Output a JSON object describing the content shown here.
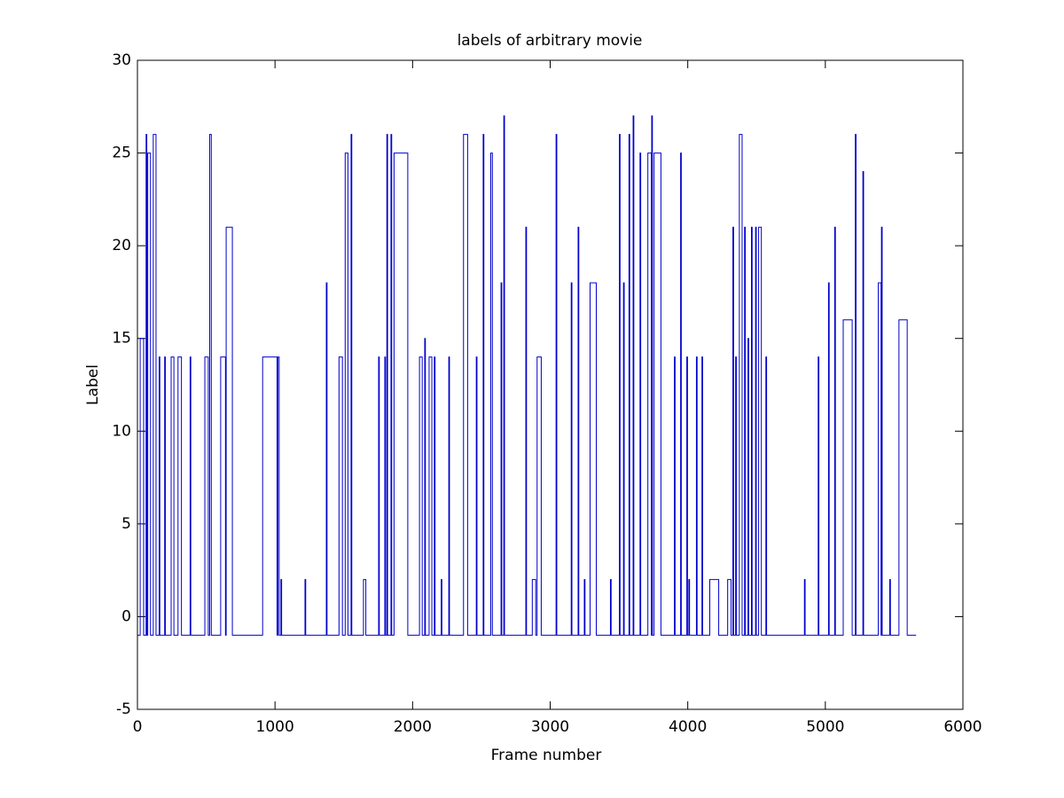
{
  "chart_data": {
    "type": "line",
    "title": "labels of arbitrary movie",
    "x_label": "Frame number",
    "y_label": "Label",
    "color": "#0000cc",
    "grid": false,
    "xlim": [
      0,
      6000
    ],
    "xticks": [
      0,
      1000,
      2000,
      3000,
      4000,
      5000,
      6000
    ],
    "ylim": [
      -5,
      30
    ],
    "yticks": [
      -5,
      0,
      5,
      10,
      15,
      20,
      25,
      30
    ],
    "x": [
      0,
      20,
      20,
      45,
      45,
      63,
      63,
      68,
      68,
      75,
      75,
      95,
      95,
      115,
      115,
      135,
      135,
      158,
      158,
      163,
      163,
      198,
      198,
      203,
      203,
      245,
      245,
      265,
      265,
      295,
      295,
      320,
      320,
      383,
      383,
      388,
      388,
      490,
      490,
      515,
      515,
      525,
      525,
      537,
      537,
      605,
      605,
      640,
      640,
      645,
      645,
      690,
      690,
      910,
      910,
      1015,
      1015,
      1020,
      1020,
      1030,
      1030,
      1043,
      1043,
      1048,
      1048,
      1218,
      1218,
      1223,
      1223,
      1373,
      1373,
      1378,
      1378,
      1465,
      1465,
      1490,
      1490,
      1510,
      1510,
      1530,
      1530,
      1553,
      1553,
      1558,
      1558,
      1643,
      1643,
      1660,
      1660,
      1753,
      1753,
      1758,
      1758,
      1798,
      1798,
      1803,
      1803,
      1813,
      1813,
      1818,
      1818,
      1843,
      1843,
      1848,
      1848,
      1865,
      1865,
      1965,
      1965,
      2050,
      2050,
      2070,
      2070,
      2088,
      2088,
      2093,
      2093,
      2120,
      2120,
      2140,
      2140,
      2158,
      2158,
      2163,
      2163,
      2208,
      2208,
      2213,
      2213,
      2263,
      2263,
      2268,
      2268,
      2370,
      2370,
      2400,
      2400,
      2463,
      2463,
      2468,
      2468,
      2513,
      2513,
      2518,
      2518,
      2568,
      2568,
      2580,
      2580,
      2643,
      2643,
      2648,
      2648,
      2663,
      2663,
      2668,
      2668,
      2823,
      2823,
      2828,
      2828,
      2870,
      2870,
      2895,
      2895,
      2905,
      2905,
      2935,
      2935,
      3043,
      3043,
      3048,
      3048,
      3153,
      3153,
      3158,
      3158,
      3203,
      3203,
      3208,
      3208,
      3248,
      3248,
      3253,
      3253,
      3290,
      3290,
      3335,
      3335,
      3438,
      3438,
      3443,
      3443,
      3503,
      3503,
      3508,
      3508,
      3533,
      3533,
      3538,
      3538,
      3573,
      3573,
      3578,
      3578,
      3603,
      3603,
      3608,
      3608,
      3653,
      3653,
      3658,
      3658,
      3710,
      3710,
      3735,
      3735,
      3738,
      3738,
      3743,
      3743,
      3755,
      3755,
      3805,
      3805,
      3903,
      3903,
      3908,
      3908,
      3948,
      3948,
      3953,
      3953,
      3993,
      3993,
      3998,
      3998,
      4008,
      4008,
      4013,
      4013,
      4063,
      4063,
      4068,
      4068,
      4103,
      4103,
      4108,
      4108,
      4160,
      4160,
      4225,
      4225,
      4290,
      4290,
      4315,
      4315,
      4328,
      4328,
      4333,
      4333,
      4348,
      4348,
      4353,
      4353,
      4375,
      4375,
      4395,
      4395,
      4413,
      4413,
      4418,
      4418,
      4438,
      4438,
      4443,
      4443,
      4463,
      4463,
      4468,
      4468,
      4493,
      4493,
      4498,
      4498,
      4515,
      4515,
      4535,
      4535,
      4568,
      4568,
      4573,
      4573,
      4848,
      4848,
      4853,
      4853,
      4948,
      4948,
      4953,
      4953,
      5023,
      5023,
      5028,
      5028,
      5068,
      5068,
      5073,
      5073,
      5130,
      5130,
      5195,
      5195,
      5218,
      5218,
      5223,
      5223,
      5273,
      5273,
      5278,
      5278,
      5385,
      5385,
      5405,
      5405,
      5408,
      5408,
      5413,
      5413,
      5468,
      5468,
      5473,
      5473,
      5535,
      5535,
      5595,
      5595,
      5660
    ],
    "values": [
      -1,
      -1,
      15,
      15,
      -1,
      -1,
      26,
      26,
      -1,
      -1,
      25,
      25,
      -1,
      -1,
      26,
      26,
      -1,
      -1,
      14,
      14,
      -1,
      -1,
      14,
      14,
      -1,
      -1,
      14,
      14,
      -1,
      -1,
      14,
      14,
      -1,
      -1,
      14,
      14,
      -1,
      -1,
      14,
      14,
      -1,
      -1,
      26,
      26,
      -1,
      -1,
      14,
      14,
      -1,
      -1,
      21,
      21,
      -1,
      -1,
      14,
      14,
      -1,
      -1,
      14,
      14,
      -1,
      -1,
      2,
      2,
      -1,
      -1,
      2,
      2,
      -1,
      -1,
      18,
      18,
      -1,
      -1,
      14,
      14,
      -1,
      -1,
      25,
      25,
      -1,
      -1,
      26,
      26,
      -1,
      -1,
      2,
      2,
      -1,
      -1,
      14,
      14,
      -1,
      -1,
      14,
      14,
      -1,
      -1,
      26,
      26,
      -1,
      -1,
      26,
      26,
      -1,
      -1,
      25,
      25,
      -1,
      -1,
      14,
      14,
      -1,
      -1,
      15,
      15,
      -1,
      -1,
      14,
      14,
      -1,
      -1,
      14,
      14,
      -1,
      -1,
      2,
      2,
      -1,
      -1,
      14,
      14,
      -1,
      -1,
      26,
      26,
      -1,
      -1,
      14,
      14,
      -1,
      -1,
      26,
      26,
      -1,
      -1,
      25,
      25,
      -1,
      -1,
      18,
      18,
      -1,
      -1,
      27,
      27,
      -1,
      -1,
      21,
      21,
      -1,
      -1,
      2,
      2,
      -1,
      -1,
      14,
      14,
      -1,
      -1,
      26,
      26,
      -1,
      -1,
      18,
      18,
      -1,
      -1,
      21,
      21,
      -1,
      -1,
      2,
      2,
      -1,
      -1,
      18,
      18,
      -1,
      -1,
      2,
      2,
      -1,
      -1,
      26,
      26,
      -1,
      -1,
      18,
      18,
      -1,
      -1,
      26,
      26,
      -1,
      -1,
      27,
      27,
      -1,
      -1,
      25,
      25,
      -1,
      -1,
      25,
      25,
      -1,
      -1,
      27,
      27,
      -1,
      -1,
      25,
      25,
      -1,
      -1,
      14,
      14,
      -1,
      -1,
      25,
      25,
      -1,
      -1,
      14,
      14,
      -1,
      -1,
      2,
      2,
      -1,
      -1,
      14,
      14,
      -1,
      -1,
      14,
      14,
      -1,
      -1,
      2,
      2,
      -1,
      -1,
      2,
      2,
      -1,
      -1,
      21,
      21,
      -1,
      -1,
      14,
      14,
      -1,
      -1,
      26,
      26,
      -1,
      -1,
      21,
      21,
      -1,
      -1,
      15,
      15,
      -1,
      -1,
      21,
      21,
      -1,
      -1,
      21,
      21,
      -1,
      -1,
      21,
      21,
      -1,
      -1,
      14,
      14,
      -1,
      -1,
      2,
      2,
      -1,
      -1,
      14,
      14,
      -1,
      -1,
      18,
      18,
      -1,
      -1,
      21,
      21,
      -1,
      -1,
      16,
      16,
      -1,
      -1,
      26,
      26,
      -1,
      -1,
      24,
      24,
      -1,
      -1,
      18,
      18,
      -1,
      -1,
      21,
      21,
      -1,
      -1,
      2,
      2,
      -1,
      -1,
      16,
      16,
      -1,
      -1
    ]
  }
}
